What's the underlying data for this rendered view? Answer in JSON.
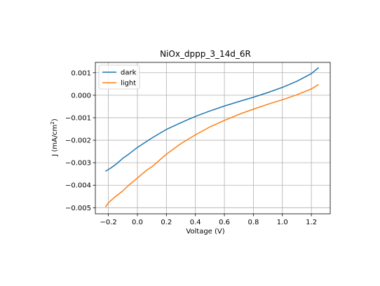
{
  "chart_data": {
    "type": "line",
    "title": "NiOx_dppp_3_14d_6R",
    "xlabel": "Voltage (V)",
    "ylabel": {
      "prefix": "J (mA/cm",
      "sup": "2",
      "suffix": ")"
    },
    "xlim": [
      -0.29,
      1.33
    ],
    "ylim": [
      -0.00527,
      0.00146
    ],
    "x_ticks": [
      -0.2,
      0.0,
      0.2,
      0.4,
      0.6,
      0.8,
      1.0,
      1.2
    ],
    "x_tick_labels": [
      "−0.2",
      "0.0",
      "0.2",
      "0.4",
      "0.6",
      "0.8",
      "1.0",
      "1.2"
    ],
    "y_ticks": [
      -0.005,
      -0.004,
      -0.003,
      -0.002,
      -0.001,
      0.0,
      0.001
    ],
    "y_tick_labels": [
      "−0.005",
      "−0.004",
      "−0.003",
      "−0.002",
      "−0.001",
      "0.000",
      "0.001"
    ],
    "grid": true,
    "legend_position": "top-left",
    "series": [
      {
        "name": "dark",
        "color": "#1f77b4",
        "x": [
          -0.22,
          -0.18,
          -0.14,
          -0.1,
          -0.06,
          0.0,
          0.1,
          0.2,
          0.3,
          0.4,
          0.5,
          0.6,
          0.7,
          0.8,
          0.9,
          1.0,
          1.1,
          1.2,
          1.25
        ],
        "y": [
          -0.00338,
          -0.00322,
          -0.00303,
          -0.0028,
          -0.00262,
          -0.00232,
          -0.0019,
          -0.00152,
          -0.00122,
          -0.00094,
          -0.0007,
          -0.00048,
          -0.00028,
          -9e-05,
          0.00012,
          0.00035,
          0.00062,
          0.00096,
          0.00123
        ]
      },
      {
        "name": "light",
        "color": "#ff7f0e",
        "x": [
          -0.22,
          -0.2,
          -0.16,
          -0.1,
          -0.06,
          0.0,
          0.06,
          0.1,
          0.2,
          0.3,
          0.4,
          0.5,
          0.6,
          0.7,
          0.8,
          0.9,
          1.0,
          1.1,
          1.2,
          1.25
        ],
        "y": [
          -0.00497,
          -0.00478,
          -0.00455,
          -0.00425,
          -0.004,
          -0.00368,
          -0.00335,
          -0.00318,
          -0.00262,
          -0.00215,
          -0.00176,
          -0.00141,
          -0.00112,
          -0.00085,
          -0.00062,
          -0.0004,
          -0.0002,
          2e-05,
          0.00028,
          0.00048
        ]
      }
    ]
  }
}
